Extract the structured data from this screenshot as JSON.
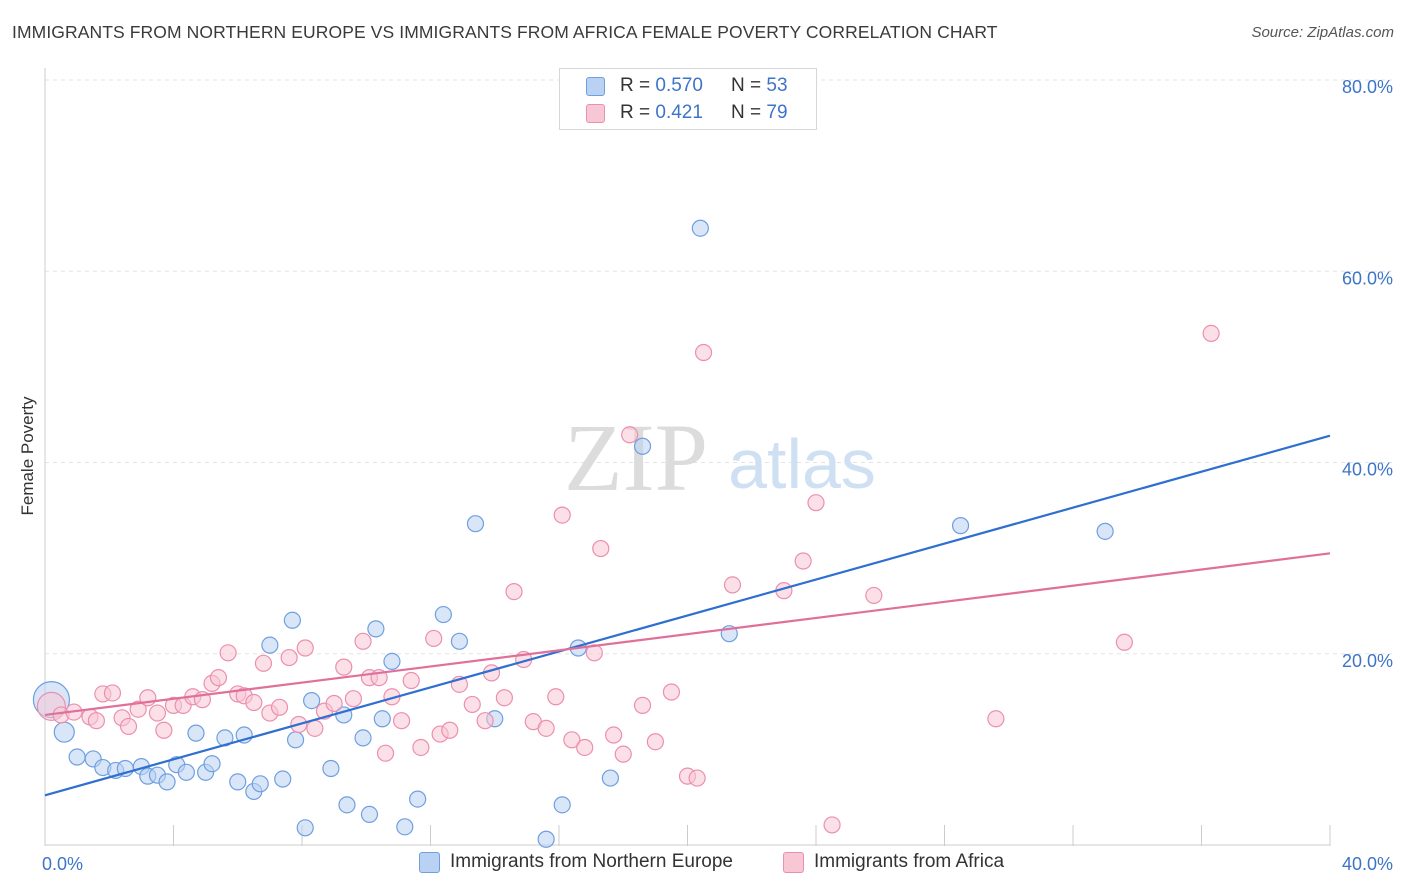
{
  "title": "IMMIGRANTS FROM NORTHERN EUROPE VS IMMIGRANTS FROM AFRICA FEMALE POVERTY CORRELATION CHART",
  "source": "Source: ZipAtlas.com",
  "watermark": {
    "zip": "ZIP",
    "atlas": "atlas"
  },
  "colors": {
    "blue": "#6f9fe0",
    "blue_fill": "#b9d1f3",
    "blue_line": "#2e6fd0",
    "pink": "#ec8fae",
    "pink_fill": "#f7c7d6",
    "pink_line": "#e0709a",
    "axis_text": "#3d74c8",
    "grid": "#e3e3e3"
  },
  "legend_top": [
    {
      "r_label": "R = ",
      "r_value": "0.570",
      "n_label": "N = ",
      "n_value": "53"
    },
    {
      "r_label": "R = ",
      "r_value": " 0.421",
      "n_label": "N = ",
      "n_value": "79"
    }
  ],
  "chart_data": {
    "type": "scatter",
    "ylabel": "Female Poverty",
    "xlim": [
      0,
      40
    ],
    "ylim": [
      0,
      80
    ],
    "x_tick_labels": [
      {
        "value": 0,
        "label": "0.0%"
      },
      {
        "value": 40,
        "label": "40.0%"
      }
    ],
    "y_tick_labels": [
      {
        "value": 20,
        "label": "20.0%"
      },
      {
        "value": 40,
        "label": "40.0%"
      },
      {
        "value": 60,
        "label": "60.0%"
      },
      {
        "value": 80,
        "label": "80.0%"
      }
    ],
    "legend_position": "bottom",
    "series": [
      {
        "name": "Immigrants from Northern Europe",
        "color": "blue",
        "trend": {
          "x": [
            0,
            40
          ],
          "y": [
            5.2,
            42.8
          ]
        },
        "points": [
          [
            0.2,
            15.2,
            18
          ],
          [
            0.6,
            11.8,
            10
          ],
          [
            1.0,
            9.2,
            8
          ],
          [
            1.5,
            9.0,
            8
          ],
          [
            1.8,
            8.1,
            8
          ],
          [
            2.2,
            7.8,
            8
          ],
          [
            2.5,
            8.0,
            8
          ],
          [
            3.0,
            8.2,
            8
          ],
          [
            3.2,
            7.2,
            8
          ],
          [
            3.5,
            7.3,
            8
          ],
          [
            3.8,
            6.6,
            8
          ],
          [
            4.1,
            8.4,
            8
          ],
          [
            4.4,
            7.6,
            8
          ],
          [
            4.7,
            11.7,
            8
          ],
          [
            5.0,
            7.6,
            8
          ],
          [
            5.2,
            8.5,
            8
          ],
          [
            5.6,
            11.2,
            8
          ],
          [
            6.0,
            6.6,
            8
          ],
          [
            6.2,
            11.5,
            8
          ],
          [
            6.5,
            5.6,
            8
          ],
          [
            6.7,
            6.4,
            8
          ],
          [
            7.0,
            20.9,
            8
          ],
          [
            7.4,
            6.9,
            8
          ],
          [
            7.7,
            23.5,
            8
          ],
          [
            7.8,
            11.0,
            8
          ],
          [
            8.1,
            1.8,
            8
          ],
          [
            8.3,
            15.1,
            8
          ],
          [
            8.9,
            8.0,
            8
          ],
          [
            9.3,
            13.6,
            8
          ],
          [
            9.4,
            4.2,
            8
          ],
          [
            9.9,
            11.2,
            8
          ],
          [
            10.1,
            3.2,
            8
          ],
          [
            10.3,
            22.6,
            8
          ],
          [
            10.5,
            13.2,
            8
          ],
          [
            10.8,
            19.2,
            8
          ],
          [
            11.2,
            1.9,
            8
          ],
          [
            11.6,
            4.8,
            8
          ],
          [
            12.4,
            24.1,
            8
          ],
          [
            12.9,
            21.3,
            8
          ],
          [
            13.4,
            33.6,
            8
          ],
          [
            14.0,
            13.2,
            8
          ],
          [
            15.6,
            0.6,
            8
          ],
          [
            16.1,
            4.2,
            8
          ],
          [
            16.6,
            20.6,
            8
          ],
          [
            17.6,
            7.0,
            8
          ],
          [
            18.6,
            41.7,
            8
          ],
          [
            20.4,
            64.5,
            8
          ],
          [
            21.3,
            22.1,
            8
          ],
          [
            28.5,
            33.4,
            8
          ],
          [
            33.0,
            32.8,
            8
          ]
        ]
      },
      {
        "name": "Immigrants from Africa",
        "color": "pink",
        "trend": {
          "x": [
            0,
            40
          ],
          "y": [
            13.6,
            30.5
          ]
        },
        "points": [
          [
            0.2,
            14.5,
            14
          ],
          [
            0.5,
            13.6,
            8
          ],
          [
            0.9,
            13.9,
            8
          ],
          [
            1.4,
            13.4,
            8
          ],
          [
            1.6,
            13.0,
            8
          ],
          [
            1.8,
            15.8,
            8
          ],
          [
            2.1,
            15.9,
            8
          ],
          [
            2.4,
            13.3,
            8
          ],
          [
            2.6,
            12.4,
            8
          ],
          [
            2.9,
            14.2,
            8
          ],
          [
            3.2,
            15.4,
            8
          ],
          [
            3.5,
            13.8,
            8
          ],
          [
            3.7,
            12.0,
            8
          ],
          [
            4.0,
            14.6,
            8
          ],
          [
            4.3,
            14.6,
            8
          ],
          [
            4.6,
            15.5,
            8
          ],
          [
            4.9,
            15.2,
            8
          ],
          [
            5.2,
            16.9,
            8
          ],
          [
            5.4,
            17.5,
            8
          ],
          [
            5.7,
            20.1,
            8
          ],
          [
            6.0,
            15.8,
            8
          ],
          [
            6.2,
            15.6,
            8
          ],
          [
            6.5,
            14.9,
            8
          ],
          [
            6.8,
            19.0,
            8
          ],
          [
            7.0,
            13.8,
            8
          ],
          [
            7.3,
            14.4,
            8
          ],
          [
            7.6,
            19.6,
            8
          ],
          [
            7.9,
            12.6,
            8
          ],
          [
            8.1,
            20.6,
            8
          ],
          [
            8.4,
            12.2,
            8
          ],
          [
            8.7,
            14.0,
            8
          ],
          [
            9.0,
            14.8,
            8
          ],
          [
            9.3,
            18.6,
            8
          ],
          [
            9.6,
            15.3,
            8
          ],
          [
            9.9,
            21.3,
            8
          ],
          [
            10.1,
            17.5,
            8
          ],
          [
            10.4,
            17.5,
            8
          ],
          [
            10.6,
            9.6,
            8
          ],
          [
            10.8,
            15.5,
            8
          ],
          [
            11.1,
            13.0,
            8
          ],
          [
            11.4,
            17.2,
            8
          ],
          [
            11.7,
            10.2,
            8
          ],
          [
            12.1,
            21.6,
            8
          ],
          [
            12.3,
            11.6,
            8
          ],
          [
            12.6,
            12.0,
            8
          ],
          [
            12.9,
            16.8,
            8
          ],
          [
            13.3,
            14.7,
            8
          ],
          [
            13.7,
            13.0,
            8
          ],
          [
            13.9,
            18.0,
            8
          ],
          [
            14.3,
            15.4,
            8
          ],
          [
            14.6,
            26.5,
            8
          ],
          [
            14.9,
            19.4,
            8
          ],
          [
            15.2,
            12.9,
            8
          ],
          [
            15.6,
            12.2,
            8
          ],
          [
            15.9,
            15.5,
            8
          ],
          [
            16.1,
            34.5,
            8
          ],
          [
            16.4,
            11.0,
            8
          ],
          [
            16.8,
            10.2,
            8
          ],
          [
            17.1,
            20.1,
            8
          ],
          [
            17.3,
            31.0,
            8
          ],
          [
            17.7,
            11.5,
            8
          ],
          [
            18.0,
            9.5,
            8
          ],
          [
            18.2,
            42.9,
            8
          ],
          [
            18.6,
            14.6,
            8
          ],
          [
            19.0,
            10.8,
            8
          ],
          [
            19.5,
            16.0,
            8
          ],
          [
            20.0,
            7.2,
            8
          ],
          [
            20.3,
            7.0,
            8
          ],
          [
            20.5,
            51.5,
            8
          ],
          [
            21.4,
            27.2,
            8
          ],
          [
            23.0,
            26.6,
            8
          ],
          [
            23.6,
            29.7,
            8
          ],
          [
            24.0,
            35.8,
            8
          ],
          [
            24.5,
            2.1,
            8
          ],
          [
            25.8,
            26.1,
            8
          ],
          [
            29.6,
            13.2,
            8
          ],
          [
            33.6,
            21.2,
            8
          ],
          [
            36.3,
            53.5,
            8
          ]
        ]
      }
    ]
  }
}
